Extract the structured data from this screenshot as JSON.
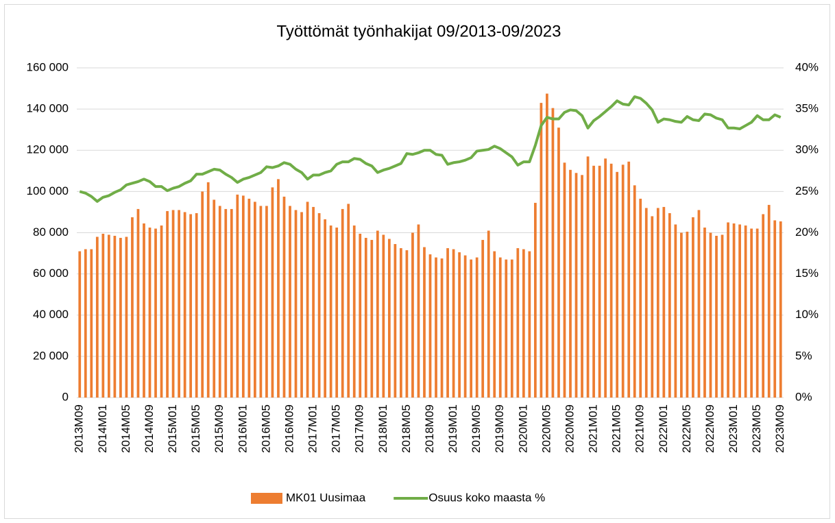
{
  "chart_data": {
    "type": "bar",
    "title": "Työttömät työnhakijat 09/2013-09/2023",
    "categories": [
      "2013M09",
      null,
      null,
      null,
      "2014M01",
      null,
      null,
      null,
      "2014M05",
      null,
      null,
      null,
      "2014M09",
      null,
      null,
      null,
      "2015M01",
      null,
      null,
      null,
      "2015M05",
      null,
      null,
      null,
      "2015M09",
      null,
      null,
      null,
      "2016M01",
      null,
      null,
      null,
      "2016M05",
      null,
      null,
      null,
      "2016M09",
      null,
      null,
      null,
      "2017M01",
      null,
      null,
      null,
      "2017M05",
      null,
      null,
      null,
      "2017M09",
      null,
      null,
      null,
      "2018M01",
      null,
      null,
      null,
      "2018M05",
      null,
      null,
      null,
      "2018M09",
      null,
      null,
      null,
      "2019M01",
      null,
      null,
      null,
      "2019M05",
      null,
      null,
      null,
      "2019M09",
      null,
      null,
      null,
      "2020M01",
      null,
      null,
      null,
      "2020M05",
      null,
      null,
      null,
      "2020M09",
      null,
      null,
      null,
      "2021M01",
      null,
      null,
      null,
      "2021M05",
      null,
      null,
      null,
      "2021M09",
      null,
      null,
      null,
      "2022M01",
      null,
      null,
      null,
      "2022M05",
      null,
      null,
      null,
      "2022M09",
      null,
      null,
      null,
      "2023M01",
      null,
      null,
      null,
      "2023M05",
      null,
      null,
      null,
      "2023M09"
    ],
    "series": [
      {
        "name": "MK01 Uusimaa",
        "type": "bar",
        "color": "#ed7d31",
        "values": [
          71000,
          72000,
          72000,
          78000,
          79500,
          79000,
          78500,
          77500,
          78000,
          87500,
          91500,
          84500,
          82500,
          82000,
          83500,
          90500,
          91000,
          91000,
          90000,
          89000,
          89500,
          100000,
          104500,
          96000,
          93000,
          91500,
          91500,
          98500,
          98000,
          96500,
          95000,
          93000,
          93000,
          102000,
          106000,
          97500,
          93000,
          91000,
          90000,
          95000,
          92500,
          89500,
          86500,
          83500,
          82500,
          91500,
          94000,
          83500,
          79500,
          77500,
          76500,
          81000,
          79000,
          77000,
          74500,
          72500,
          71500,
          80000,
          84000,
          73000,
          69500,
          68000,
          67500,
          72500,
          72000,
          70500,
          69000,
          67000,
          68000,
          76500,
          81000,
          71000,
          68000,
          67000,
          67000,
          72500,
          72000,
          71000,
          94500,
          143000,
          147500,
          140500,
          131000,
          114000,
          110500,
          109000,
          108000,
          117000,
          112500,
          112500,
          116000,
          113500,
          109500,
          113000,
          114500,
          103000,
          96500,
          92000,
          88000,
          92000,
          92500,
          89500,
          84000,
          80000,
          80500,
          87500,
          91000,
          82500,
          80000,
          78500,
          79000,
          85000,
          84500,
          84000,
          83500,
          82000,
          82000,
          89000,
          93500,
          86000,
          85500
        ]
      },
      {
        "name": "Osuus koko maasta %",
        "type": "line",
        "axis": "y2",
        "color": "#70ad47",
        "values": [
          25.0,
          24.8,
          24.4,
          23.8,
          24.3,
          24.5,
          24.9,
          25.2,
          25.8,
          26.0,
          26.2,
          26.5,
          26.2,
          25.6,
          25.6,
          25.1,
          25.4,
          25.6,
          26.0,
          26.3,
          27.1,
          27.1,
          27.4,
          27.7,
          27.6,
          27.1,
          26.7,
          26.1,
          26.5,
          26.7,
          27.0,
          27.3,
          28.0,
          27.9,
          28.1,
          28.5,
          28.3,
          27.7,
          27.3,
          26.5,
          27.0,
          27.0,
          27.3,
          27.5,
          28.3,
          28.6,
          28.6,
          29.0,
          28.9,
          28.4,
          28.1,
          27.3,
          27.6,
          27.8,
          28.1,
          28.4,
          29.6,
          29.5,
          29.7,
          30.0,
          30.0,
          29.5,
          29.4,
          28.3,
          28.5,
          28.6,
          28.8,
          29.1,
          29.9,
          30.0,
          30.1,
          30.5,
          30.2,
          29.7,
          29.2,
          28.2,
          28.6,
          28.6,
          30.6,
          33.0,
          34.0,
          33.8,
          33.8,
          34.6,
          34.9,
          34.8,
          34.2,
          32.7,
          33.6,
          34.1,
          34.7,
          35.3,
          36.0,
          35.6,
          35.5,
          36.5,
          36.3,
          35.7,
          34.9,
          33.4,
          33.8,
          33.7,
          33.5,
          33.4,
          34.1,
          33.7,
          33.6,
          34.4,
          34.3,
          33.9,
          33.7,
          32.7,
          32.7,
          32.6,
          33.0,
          33.4,
          34.2,
          33.7,
          33.7,
          34.3,
          34.0
        ]
      }
    ],
    "ylim": [
      0,
      160000
    ],
    "yticks": [
      {
        "value": 0,
        "label": "0"
      },
      {
        "value": 20000,
        "label": "20 000"
      },
      {
        "value": 40000,
        "label": "40 000"
      },
      {
        "value": 60000,
        "label": "60 000"
      },
      {
        "value": 80000,
        "label": "80 000"
      },
      {
        "value": 100000,
        "label": "100 000"
      },
      {
        "value": 120000,
        "label": "120 000"
      },
      {
        "value": 140000,
        "label": "140 000"
      },
      {
        "value": 160000,
        "label": "160 000"
      }
    ],
    "y2lim": [
      0,
      40
    ],
    "y2ticks": [
      {
        "value": 0,
        "label": "0%"
      },
      {
        "value": 5,
        "label": "5%"
      },
      {
        "value": 10,
        "label": "10%"
      },
      {
        "value": 15,
        "label": "15%"
      },
      {
        "value": 20,
        "label": "20%"
      },
      {
        "value": 25,
        "label": "25%"
      },
      {
        "value": 30,
        "label": "30%"
      },
      {
        "value": 35,
        "label": "35%"
      },
      {
        "value": 40,
        "label": "40%"
      }
    ],
    "grid": true,
    "legend": "bottom"
  }
}
